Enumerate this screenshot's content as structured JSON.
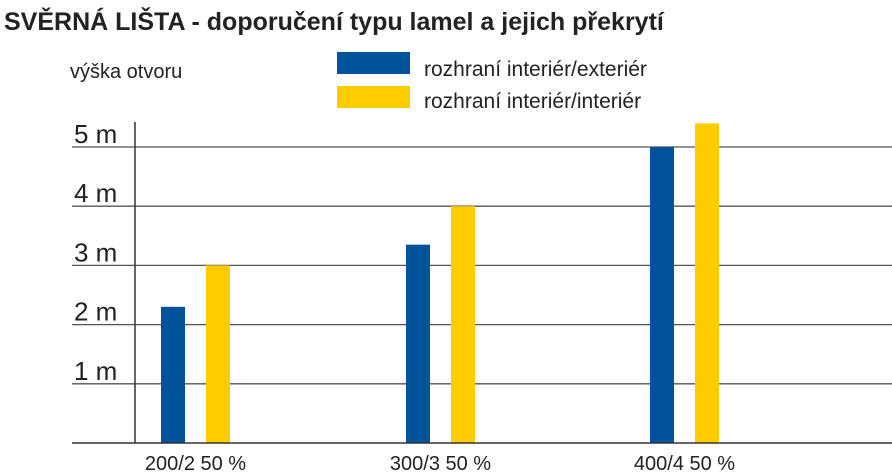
{
  "chart_data": {
    "type": "bar",
    "title": "SVĚRNÁ LIŠTA - doporučení typu lamel a jejich překrytí",
    "ylabel": "výška otvoru",
    "xlabel": "",
    "categories": [
      "200/2 50 %",
      "300/3 50 %",
      "400/4 50 %"
    ],
    "series": [
      {
        "name": "rozhraní interiér/exteriér",
        "color": "#00529b",
        "values": [
          2.3,
          3.35,
          5.0
        ]
      },
      {
        "name": "rozhraní interiér/interiér",
        "color": "#ffcc00",
        "values": [
          3.0,
          4.0,
          5.4
        ]
      }
    ],
    "yticks": [
      {
        "value": 1,
        "label": "1 m"
      },
      {
        "value": 2,
        "label": "2 m"
      },
      {
        "value": 3,
        "label": "3 m"
      },
      {
        "value": 4,
        "label": "4 m"
      },
      {
        "value": 5,
        "label": "5 m"
      }
    ],
    "ylim": [
      0,
      5.4
    ],
    "grid": true,
    "legend_position": "top"
  }
}
